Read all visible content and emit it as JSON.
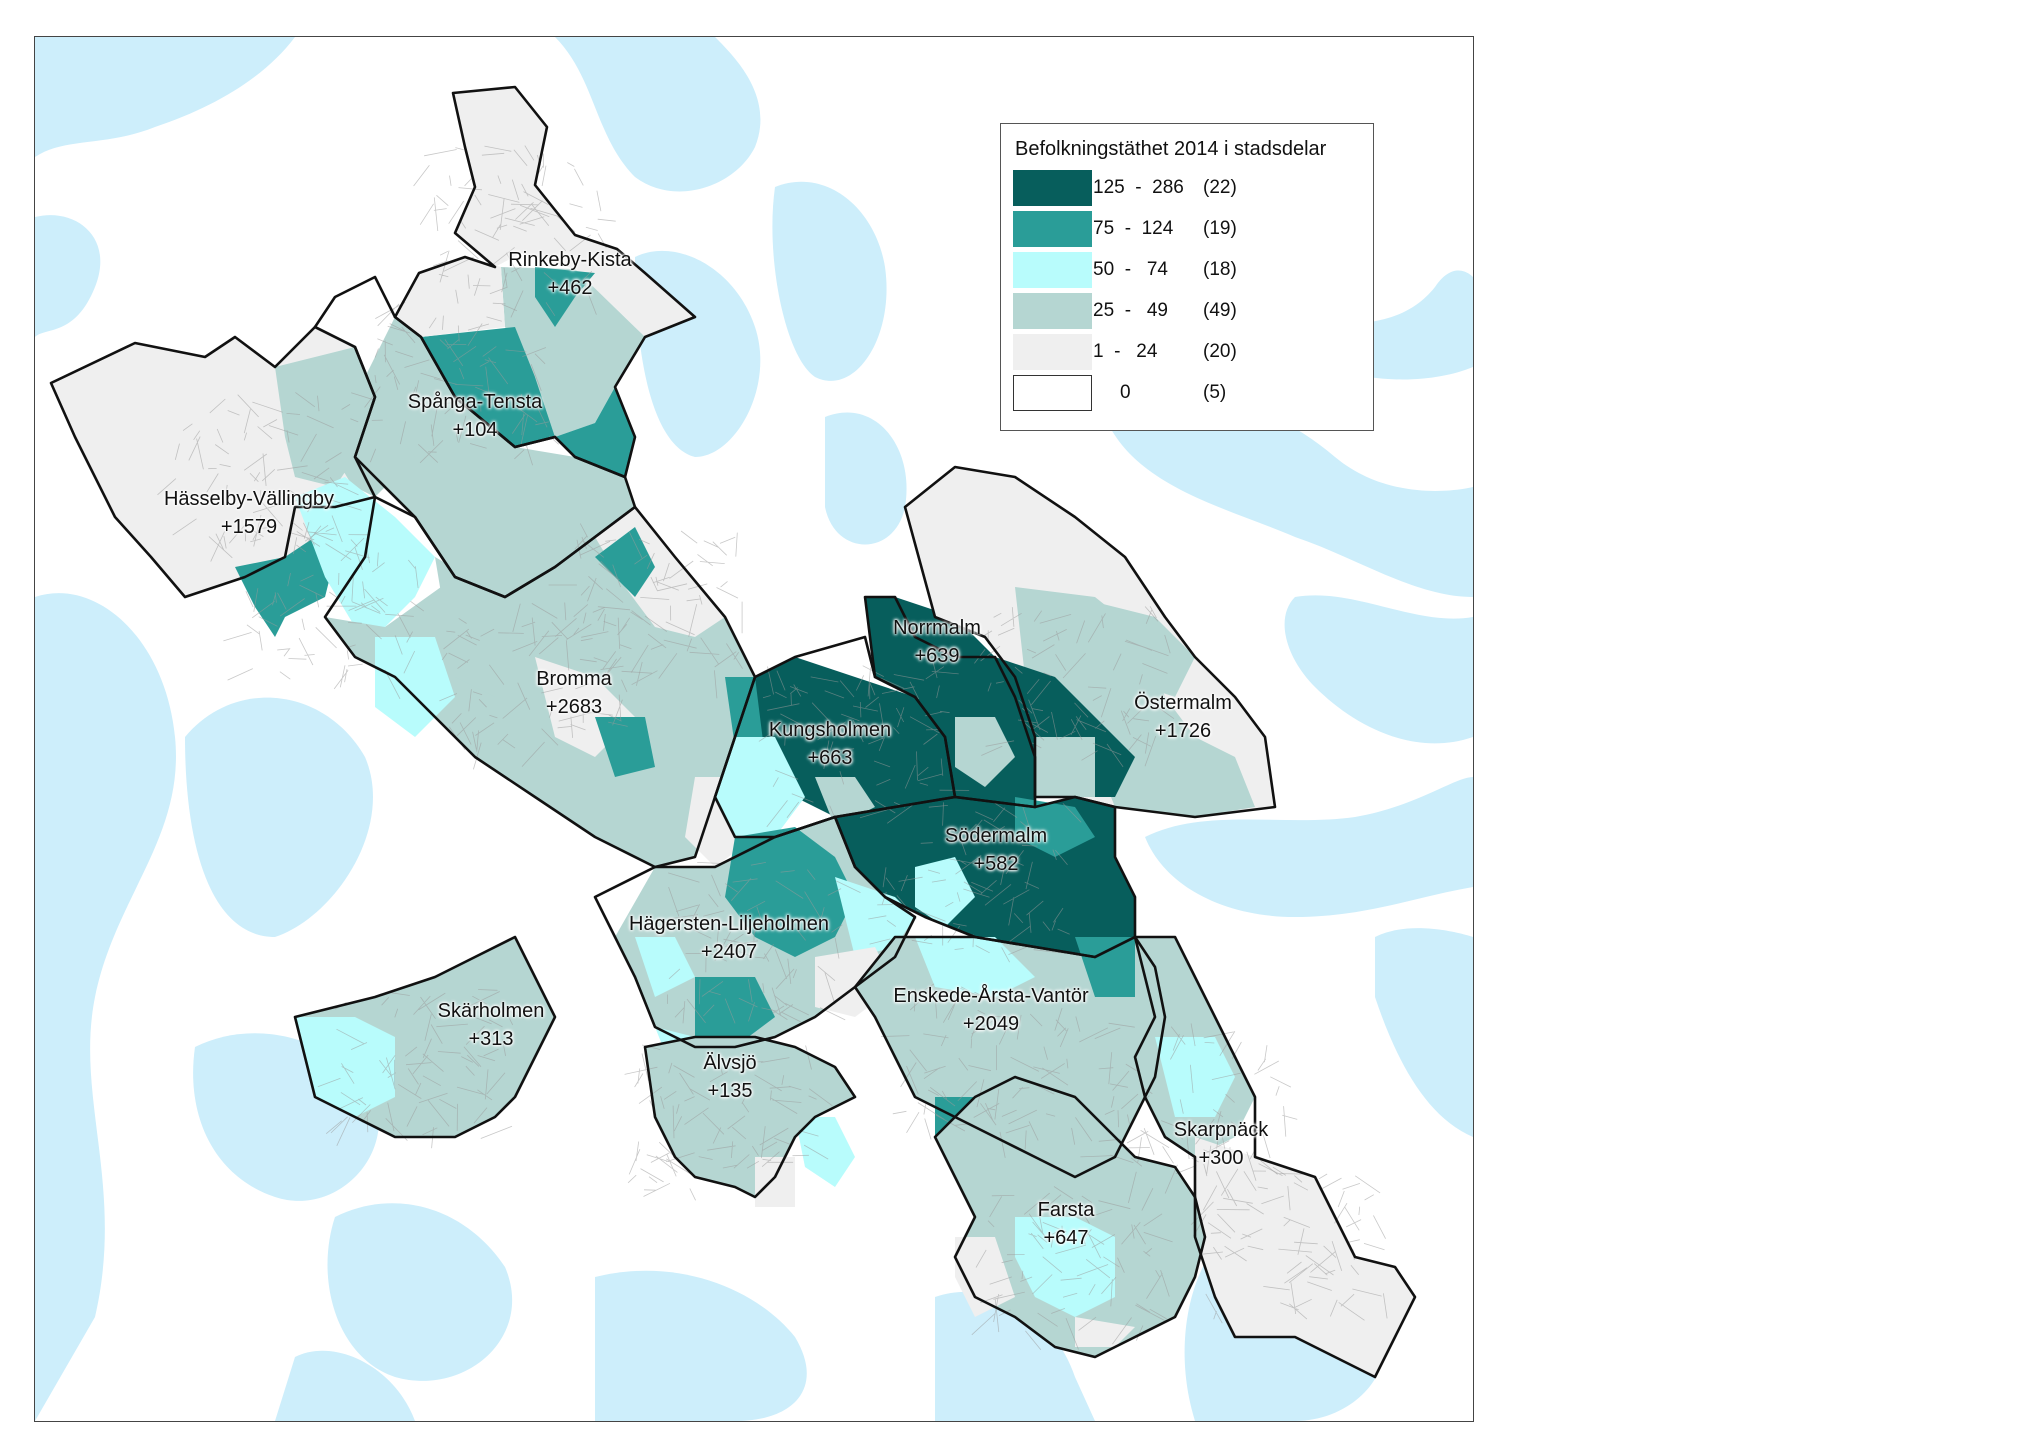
{
  "legend": {
    "title": "Befolkningstäthet 2014 i stadsdelar",
    "classes": [
      {
        "range": "125  -  286",
        "count": "(22)",
        "color": "#075e5c"
      },
      {
        "range": "75  -  124",
        "count": "(19)",
        "color": "#2a9d98"
      },
      {
        "range": "50  -   74",
        "count": "(18)",
        "color": "#b8fcfc"
      },
      {
        "range": "25  -   49",
        "count": "(49)",
        "color": "#b5d6d2"
      },
      {
        "range": "1  -   24",
        "count": "(20)",
        "color": "#efefef"
      },
      {
        "range": "0",
        "count": "(5)",
        "color": "#ffffff"
      }
    ]
  },
  "colors": {
    "water": "#cdeefb",
    "border": "#111111",
    "streets": "#9a9a9a"
  },
  "districts": [
    {
      "name": "Rinkeby-Kista",
      "delta": "+462"
    },
    {
      "name": "Spånga-Tensta",
      "delta": "+104"
    },
    {
      "name": "Hässelby-Vällingby",
      "delta": "+1579"
    },
    {
      "name": "Bromma",
      "delta": "+2683"
    },
    {
      "name": "Norrmalm",
      "delta": "+639"
    },
    {
      "name": "Östermalm",
      "delta": "+1726"
    },
    {
      "name": "Kungsholmen",
      "delta": "+663"
    },
    {
      "name": "Södermalm",
      "delta": "+582"
    },
    {
      "name": "Hägersten-Liljeholmen",
      "delta": "+2407"
    },
    {
      "name": "Enskede-Årsta-Vantör",
      "delta": "+2049"
    },
    {
      "name": "Skärholmen",
      "delta": "+313"
    },
    {
      "name": "Älvsjö",
      "delta": "+135"
    },
    {
      "name": "Skarpnäck",
      "delta": "+300"
    },
    {
      "name": "Farsta",
      "delta": "+647"
    }
  ]
}
